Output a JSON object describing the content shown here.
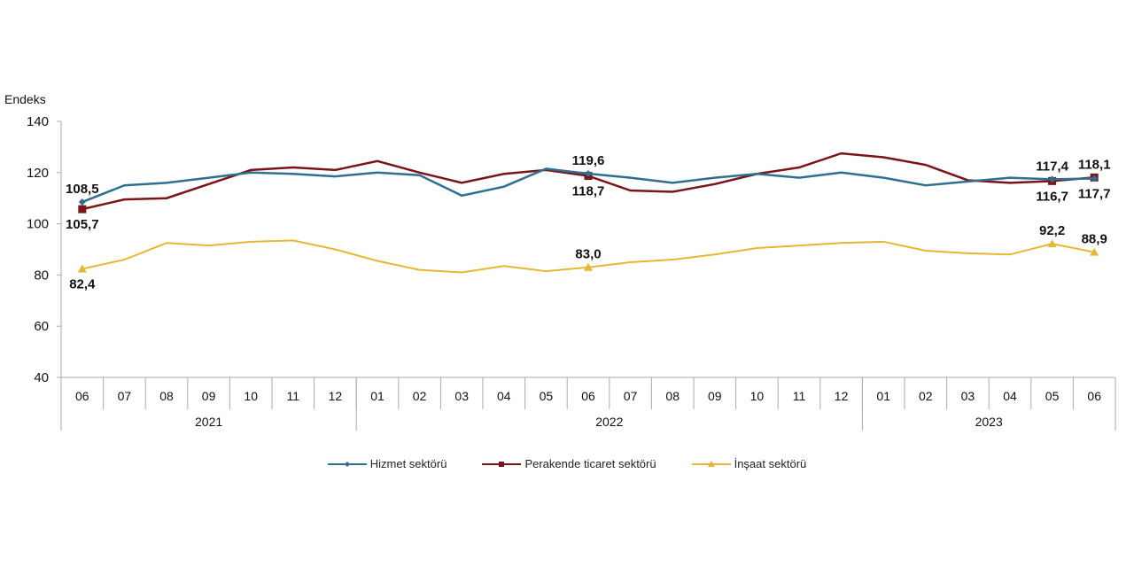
{
  "chart_data": {
    "type": "line",
    "title": "",
    "ylabel": "Endeks",
    "xlabel": "",
    "ylim": [
      40,
      140
    ],
    "yticks": [
      40,
      60,
      80,
      100,
      120,
      140
    ],
    "grid": false,
    "legend_placement": "bottom",
    "categories": [
      "06",
      "07",
      "08",
      "09",
      "10",
      "11",
      "12",
      "01",
      "02",
      "03",
      "04",
      "05",
      "06",
      "07",
      "08",
      "09",
      "10",
      "11",
      "12",
      "01",
      "02",
      "03",
      "04",
      "05",
      "06"
    ],
    "year_groups": [
      {
        "label": "2021",
        "count": 7
      },
      {
        "label": "2022",
        "count": 12
      },
      {
        "label": "2023",
        "count": 6
      }
    ],
    "series": [
      {
        "name": "Hizmet sektörü",
        "color": "#2f6f8f",
        "marker": "diamond",
        "values": [
          108.5,
          115,
          116,
          118,
          120,
          119.5,
          118.5,
          120,
          119,
          111,
          114.5,
          121.5,
          119.6,
          118,
          116,
          118,
          119.5,
          118,
          120,
          118,
          115,
          116.5,
          118,
          117.4,
          117.7
        ]
      },
      {
        "name": "Perakende ticaret sektörü",
        "color": "#7b1418",
        "marker": "square",
        "values": [
          105.7,
          109.5,
          110,
          115.5,
          121,
          122,
          121,
          124.5,
          120,
          116,
          119.5,
          121,
          118.7,
          113,
          112.5,
          115.5,
          119.5,
          122,
          127.5,
          126,
          123,
          117,
          116,
          116.7,
          118.1
        ]
      },
      {
        "name": "İnşaat sektörü",
        "color": "#e6b733",
        "marker": "triangle",
        "values": [
          82.4,
          86,
          92.5,
          91.5,
          93,
          93.5,
          90,
          85.5,
          82,
          81,
          83.5,
          81.5,
          83.0,
          85,
          86,
          88,
          90.5,
          91.5,
          92.5,
          93,
          89.5,
          88.5,
          88,
          92.2,
          88.9
        ]
      }
    ],
    "annotations": [
      {
        "series": 0,
        "index": 0,
        "text": "108,5",
        "pos": "above"
      },
      {
        "series": 1,
        "index": 0,
        "text": "105,7",
        "pos": "below"
      },
      {
        "series": 2,
        "index": 0,
        "text": "82,4",
        "pos": "below"
      },
      {
        "series": 0,
        "index": 12,
        "text": "119,6",
        "pos": "above"
      },
      {
        "series": 1,
        "index": 12,
        "text": "118,7",
        "pos": "below"
      },
      {
        "series": 2,
        "index": 12,
        "text": "83,0",
        "pos": "above"
      },
      {
        "series": 0,
        "index": 23,
        "text": "117,4",
        "pos": "above"
      },
      {
        "series": 1,
        "index": 23,
        "text": "116,7",
        "pos": "below"
      },
      {
        "series": 2,
        "index": 23,
        "text": "92,2",
        "pos": "above"
      },
      {
        "series": 1,
        "index": 24,
        "text": "118,1",
        "pos": "above"
      },
      {
        "series": 0,
        "index": 24,
        "text": "117,7",
        "pos": "below"
      },
      {
        "series": 2,
        "index": 24,
        "text": "88,9",
        "pos": "above"
      }
    ]
  }
}
